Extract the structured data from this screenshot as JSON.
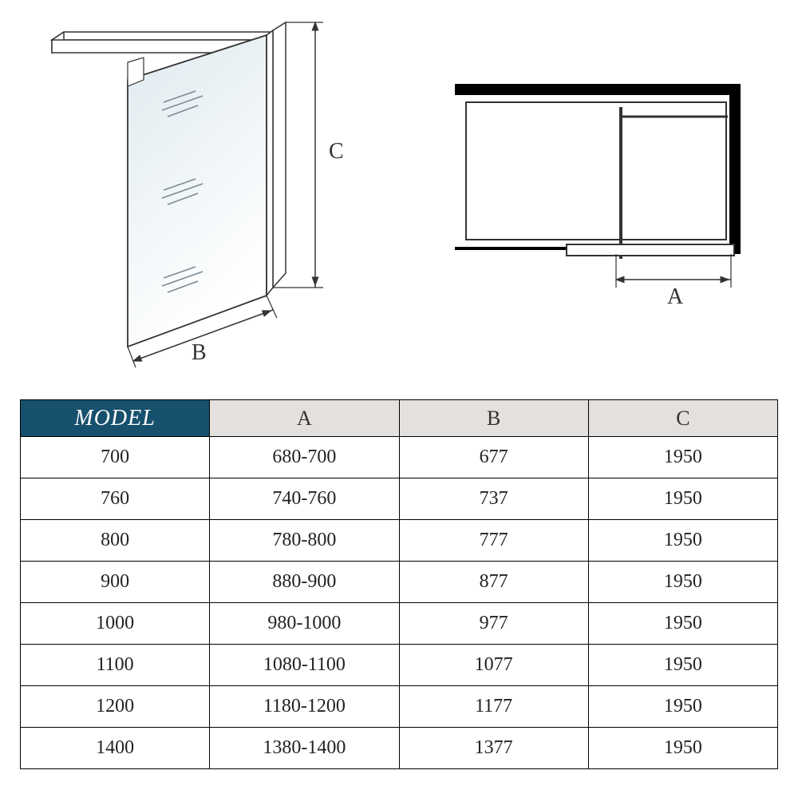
{
  "diagram": {
    "label_A_perspective": "",
    "label_B": "B",
    "label_C": "C",
    "label_A_top": "A",
    "stroke_color": "#333333",
    "glass_fill_top": "#e8f0f3",
    "glass_fill_bottom": "#ffffff",
    "line_width_thin": 1.5,
    "line_width_thick": 3
  },
  "table": {
    "headers": {
      "model": "MODEL",
      "a": "A",
      "b": "B",
      "c": "C"
    },
    "rows": [
      {
        "model": "700",
        "a": "680-700",
        "b": "677",
        "c": "1950"
      },
      {
        "model": "760",
        "a": "740-760",
        "b": "737",
        "c": "1950"
      },
      {
        "model": "800",
        "a": "780-800",
        "b": "777",
        "c": "1950"
      },
      {
        "model": "900",
        "a": "880-900",
        "b": "877",
        "c": "1950"
      },
      {
        "model": "1000",
        "a": "980-1000",
        "b": "977",
        "c": "1950"
      },
      {
        "model": "1100",
        "a": "1080-1100",
        "b": "1077",
        "c": "1950"
      },
      {
        "model": "1200",
        "a": "1180-1200",
        "b": "1177",
        "c": "1950"
      },
      {
        "model": "1400",
        "a": "1380-1400",
        "b": "1377",
        "c": "1950"
      }
    ],
    "col_widths": [
      "25%",
      "25%",
      "25%",
      "25%"
    ],
    "header_bg_model": "#17506c",
    "header_bg_dim": "#e3e0dd",
    "header_fg_model": "#ffffff",
    "header_fg_dim": "#333333",
    "border_color": "#000000",
    "cell_fontsize": 24
  }
}
